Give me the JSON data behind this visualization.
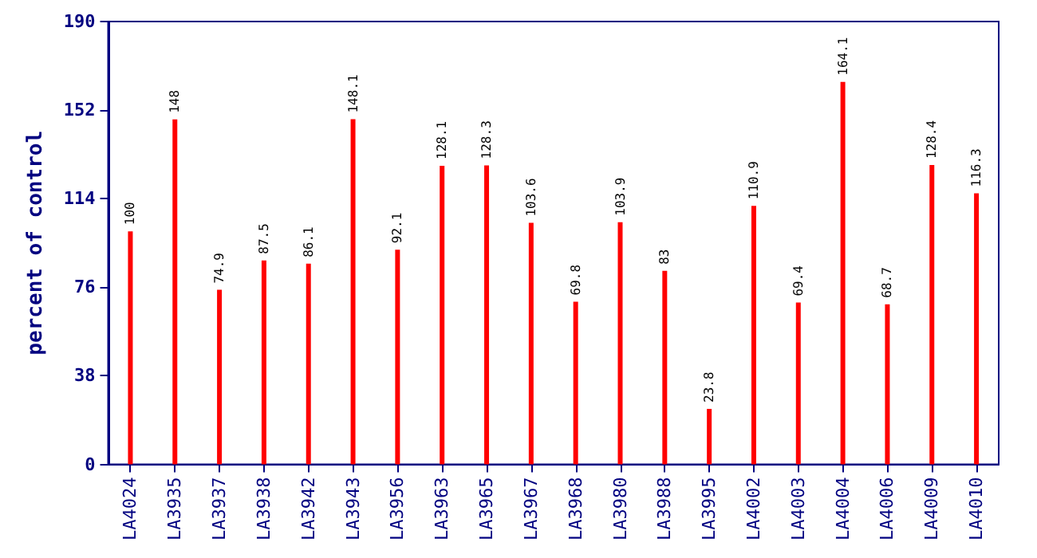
{
  "chart_data": {
    "type": "bar",
    "ylabel": "percent of control",
    "categories": [
      "LA4024",
      "LA3935",
      "LA3937",
      "LA3938",
      "LA3942",
      "LA3943",
      "LA3956",
      "LA3963",
      "LA3965",
      "LA3967",
      "LA3968",
      "LA3980",
      "LA3988",
      "LA3995",
      "LA4002",
      "LA4003",
      "LA4004",
      "LA4006",
      "LA4009",
      "LA4010"
    ],
    "values": [
      100,
      148,
      74.9,
      87.5,
      86.1,
      148.1,
      92.1,
      128.1,
      128.3,
      103.6,
      69.8,
      103.9,
      83,
      23.8,
      110.9,
      69.4,
      164.1,
      68.7,
      128.4,
      116.3
    ],
    "color": "#ff0000",
    "ylim": [
      0,
      190
    ],
    "yticks": [
      0,
      38,
      76,
      114,
      152,
      190
    ],
    "data_labels": true,
    "grid": false
  }
}
